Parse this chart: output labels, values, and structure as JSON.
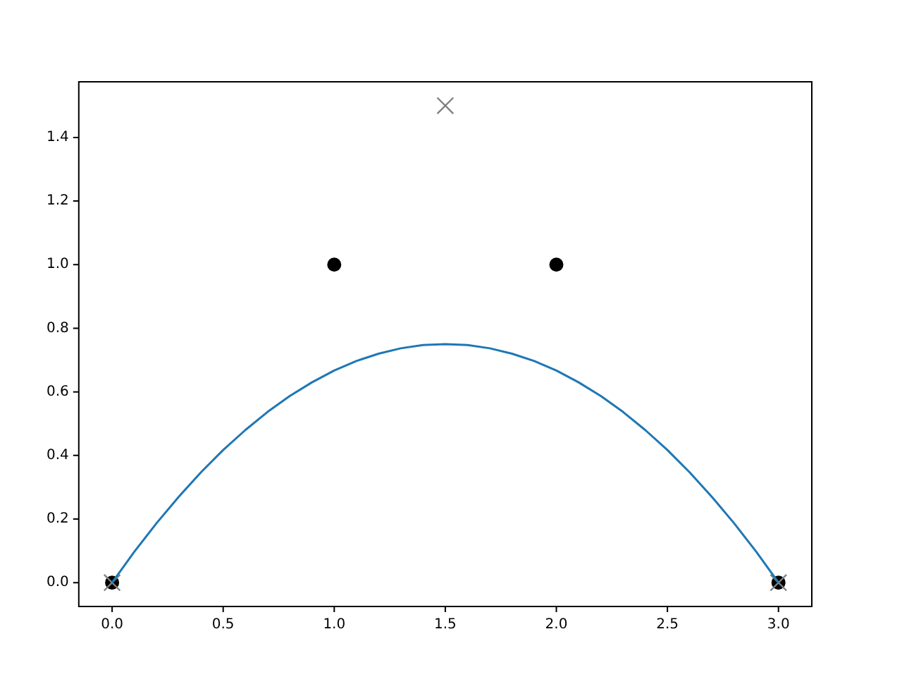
{
  "chart_data": {
    "type": "line",
    "xlim": [
      -0.15,
      3.15
    ],
    "ylim": [
      -0.075,
      1.575
    ],
    "xticks": [
      {
        "value": 0,
        "label": "0.0"
      },
      0.5,
      {
        "value": 1,
        "label": "1.0"
      },
      1.5,
      {
        "value": 2,
        "label": "2.0"
      },
      2.5,
      {
        "value": 3,
        "label": "3.0"
      }
    ],
    "yticks": [
      {
        "value": 0,
        "label": "0.0"
      },
      0.2,
      0.4,
      0.6,
      0.8,
      {
        "value": 1,
        "label": "1.0"
      },
      1.2,
      1.4
    ],
    "grid": false,
    "legend": false,
    "series": [
      {
        "type": "line",
        "color": "#1f77b4",
        "marker": "none",
        "line_style": "solid",
        "x": [
          0,
          0.1,
          0.2,
          0.3,
          0.4,
          0.5,
          0.6,
          0.7,
          0.8,
          0.9,
          1,
          1.1,
          1.2,
          1.3,
          1.4,
          1.5,
          1.6,
          1.7,
          1.8,
          1.9,
          2,
          2.1,
          2.2,
          2.3,
          2.4,
          2.5,
          2.6,
          2.7,
          2.8,
          2.9,
          3
        ],
        "values": [
          0,
          0.097,
          0.187,
          0.27,
          0.347,
          0.417,
          0.48,
          0.537,
          0.587,
          0.63,
          0.667,
          0.697,
          0.72,
          0.737,
          0.747,
          0.75,
          0.747,
          0.737,
          0.72,
          0.697,
          0.667,
          0.63,
          0.587,
          0.537,
          0.48,
          0.417,
          0.347,
          0.27,
          0.187,
          0.097,
          0
        ]
      },
      {
        "type": "scatter",
        "color": "#808080",
        "marker": "cross",
        "x": [
          0,
          1.5,
          3
        ],
        "values": [
          0,
          1.5,
          0
        ]
      },
      {
        "type": "scatter",
        "color": "#000000",
        "marker": "circle",
        "x": [
          0,
          1,
          2,
          3
        ],
        "values": [
          0,
          1,
          1,
          0
        ]
      }
    ]
  }
}
